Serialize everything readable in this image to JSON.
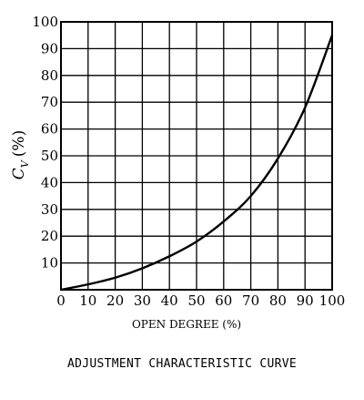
{
  "caption": "ADJUSTMENT CHARACTERISTIC CURVE",
  "chart_data": {
    "type": "line",
    "xlabel": "OPEN DEGREE (%)",
    "ylabel_main": "C",
    "ylabel_sub": "V",
    "ylabel_unit": "(%)",
    "xlim": [
      0,
      100
    ],
    "ylim": [
      0,
      100
    ],
    "x_ticks": [
      "0",
      "10",
      "20",
      "30",
      "40",
      "50",
      "60",
      "70",
      "80",
      "90",
      "100"
    ],
    "y_ticks": [
      "10",
      "20",
      "30",
      "40",
      "50",
      "60",
      "70",
      "80",
      "90",
      "100"
    ],
    "grid": true,
    "series": [
      {
        "x": [
          0,
          10,
          20,
          30,
          40,
          50,
          60,
          70,
          80,
          90,
          100
        ],
        "y": [
          0,
          2,
          4.5,
          8,
          12.5,
          18,
          25.5,
          35,
          49,
          68,
          95
        ]
      }
    ]
  }
}
